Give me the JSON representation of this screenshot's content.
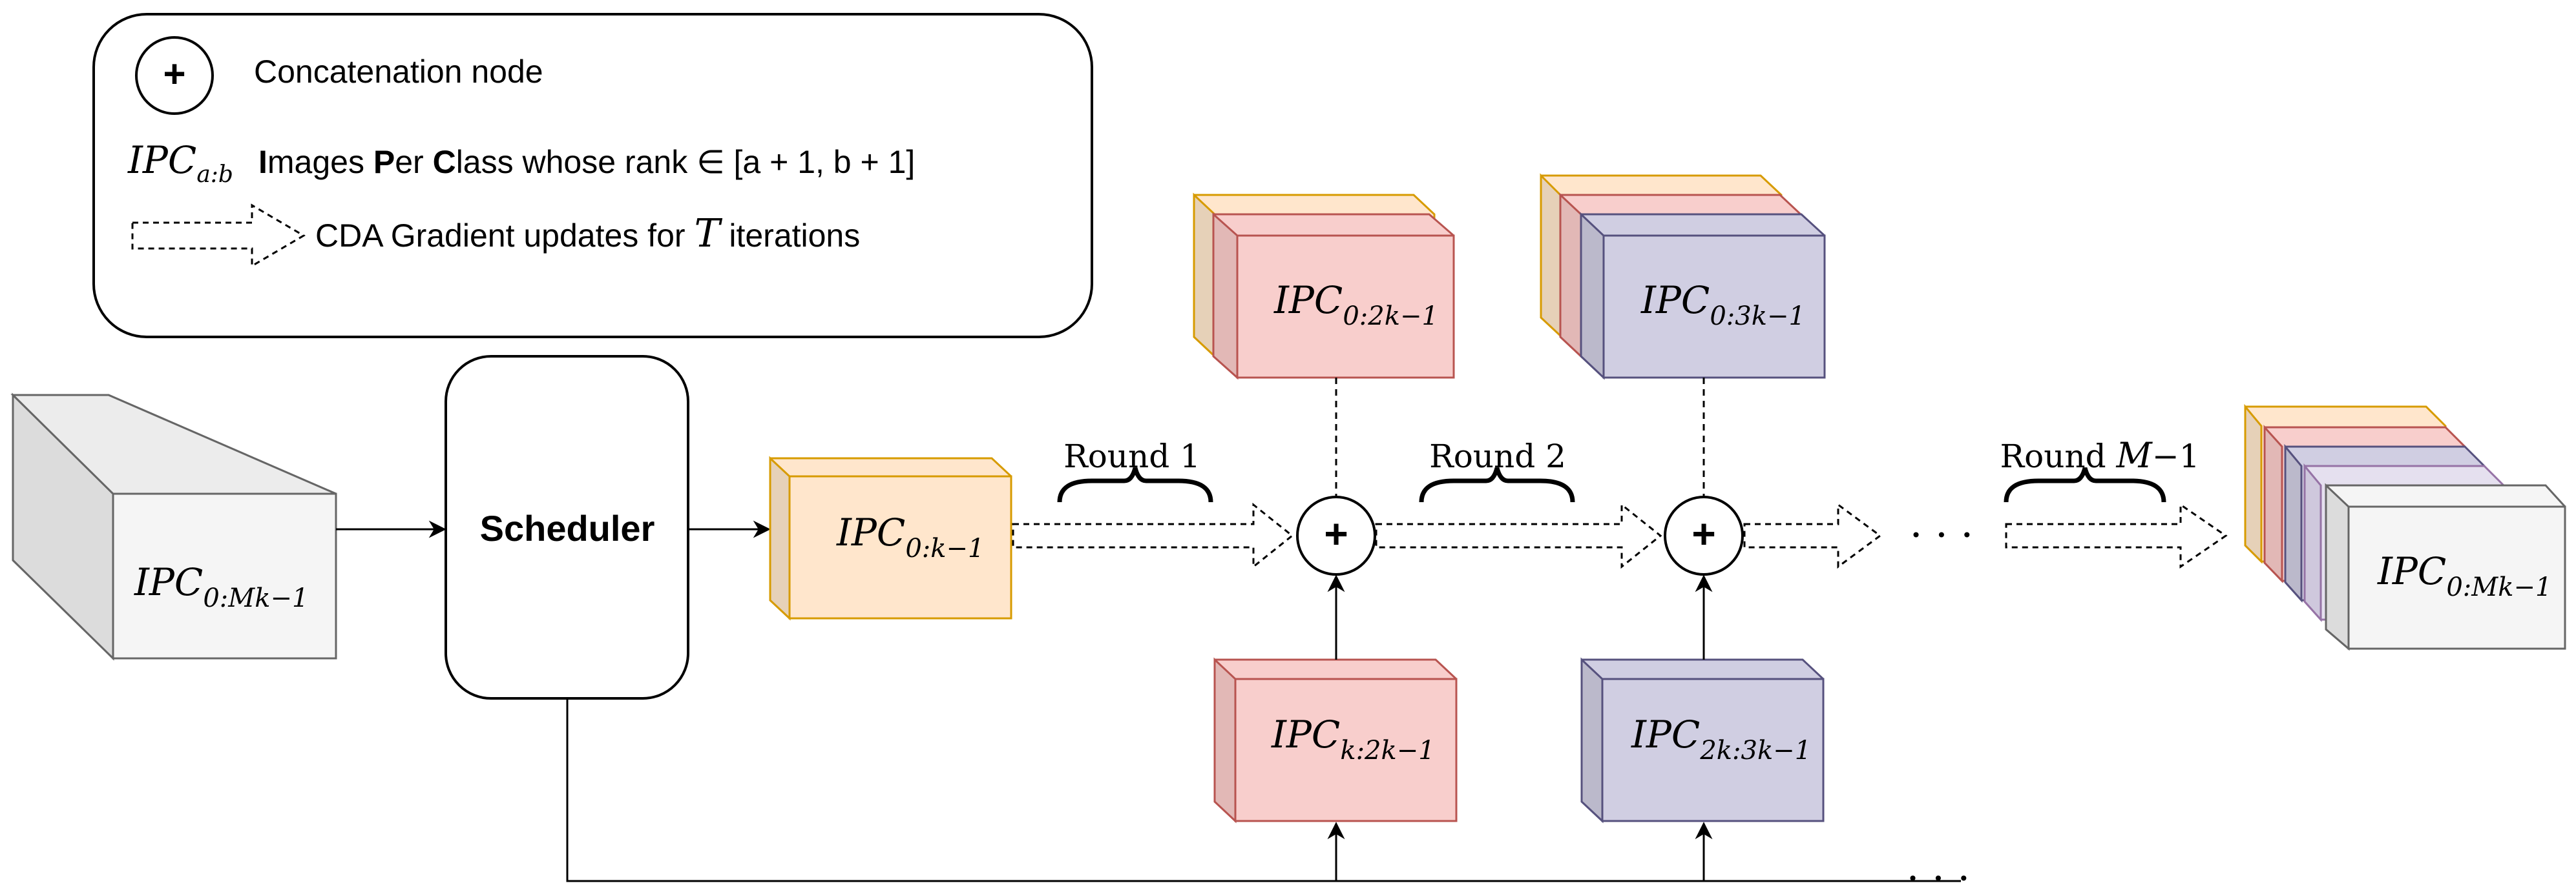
{
  "legend": {
    "concat_symbol": "+",
    "concat_label": "Concatenation node",
    "ipc_symbol": "IPC",
    "ipc_subscript": "a:b",
    "ipc_desc_I": "I",
    "ipc_desc_mages": "mages ",
    "ipc_desc_P": "P",
    "ipc_desc_er": "er ",
    "ipc_desc_C": "C",
    "ipc_desc_rest": "lass whose rank ∈ [a + 1, b + 1]",
    "cda_label_prefix": "CDA Gradient updates for ",
    "cda_label_T": "T",
    "cda_label_suffix": " iterations"
  },
  "scheduler": {
    "label": "Scheduler"
  },
  "blocks": {
    "full": {
      "main": "IPC",
      "sub": "0:Mk−1"
    },
    "round_in": {
      "main": "IPC",
      "sub": "0:k−1"
    },
    "top1": {
      "main": "IPC",
      "sub": "0:2k−1"
    },
    "top2": {
      "main": "IPC",
      "sub": "0:3k−1"
    },
    "bottom1": {
      "main": "IPC",
      "sub": "k:2k−1"
    },
    "bottom2": {
      "main": "IPC",
      "sub": "2k:3k−1"
    },
    "final": {
      "main": "IPC",
      "sub": "0:Mk−1"
    }
  },
  "rounds": {
    "round1": "Round 1",
    "round2": "Round 2",
    "round_last_prefix": "Round ",
    "round_last_M": "M",
    "round_last_suffix": "−1"
  },
  "ellipsis": "· · ·",
  "colors": {
    "orange_fill": "#FFE6CC",
    "orange_stroke": "#D79B00",
    "red_fill": "#F8CECC",
    "red_stroke": "#B85450",
    "purple_fill": "#D0CEE2",
    "purple_stroke": "#56517E",
    "gray_fill": "#F5F5F5",
    "gray_stroke": "#666666"
  }
}
